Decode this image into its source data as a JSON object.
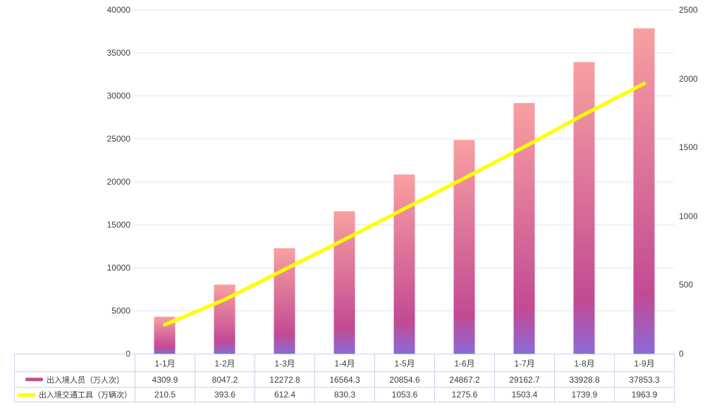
{
  "chart_data": {
    "type": "bar",
    "title": "",
    "categories": [
      "1-1月",
      "1-2月",
      "1-3月",
      "1-4月",
      "1-5月",
      "1-6月",
      "1-7月",
      "1-8月",
      "1-9月"
    ],
    "series": [
      {
        "name": "出入境人员（万人次）",
        "type": "bar",
        "yaxis": "left",
        "values": [
          4309.9,
          8047.2,
          12272.8,
          16564.3,
          20854.6,
          24867.2,
          29162.7,
          33928.8,
          37853.3
        ],
        "gradient": {
          "top": "#f9a0a1",
          "mid": "#c24a93",
          "bottom": "#8b6ad8",
          "mid_offset": 0.82
        },
        "legend_color": "#c3538f"
      },
      {
        "name": "出入境交通工具（万辆次）",
        "type": "line",
        "yaxis": "right",
        "values": [
          210.5,
          393.6,
          612.4,
          830.3,
          1053.6,
          1275.6,
          1503.4,
          1739.9,
          1963.9
        ],
        "color": "#ffff00",
        "legend_color": "#ffff00"
      }
    ],
    "left_axis": {
      "min": 0,
      "max": 40000,
      "step": 5000,
      "tick_labels": [
        "0",
        "5000",
        "10000",
        "15000",
        "20000",
        "25000",
        "30000",
        "35000",
        "40000"
      ]
    },
    "right_axis": {
      "min": 0,
      "max": 2500,
      "step": 500,
      "tick_labels": [
        "0",
        "500",
        "1000",
        "1500",
        "2000",
        "2500"
      ]
    },
    "grid": true,
    "legend_position": "table-left"
  },
  "colors": {
    "background": "#ffffff",
    "gridline": "#dde4f1",
    "table_border": "#c9d3e8",
    "text": "#404040",
    "bar_top": "#f9a0a1",
    "bar_mid": "#c24a93",
    "bar_bottom": "#8b6ad8",
    "line": "#ffff00"
  }
}
